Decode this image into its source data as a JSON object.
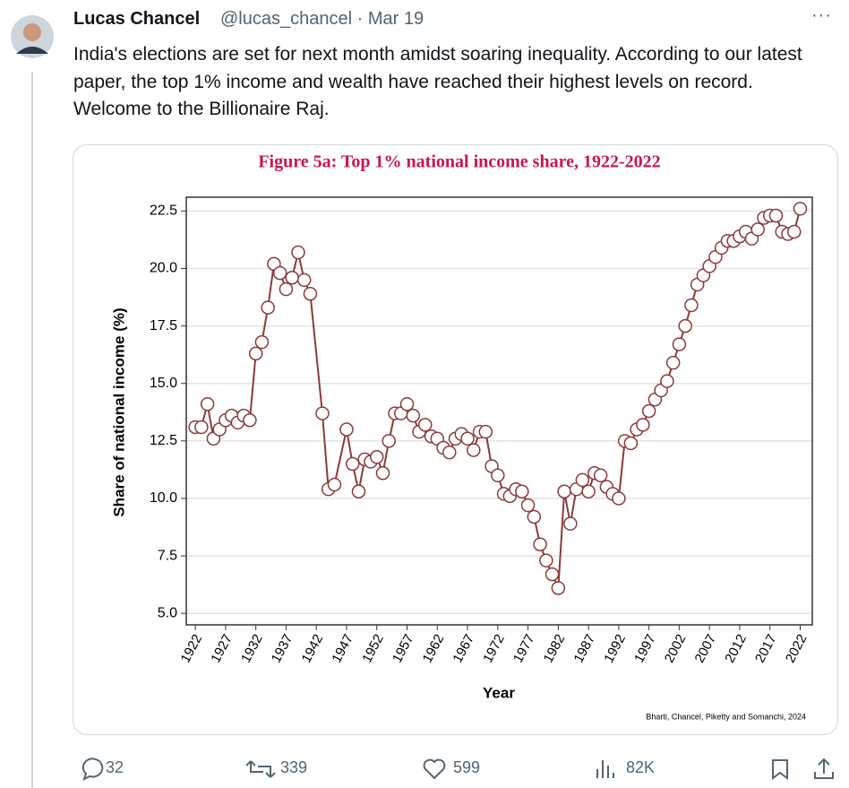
{
  "tweet": {
    "name": "Lucas Chancel",
    "handle": "@lucas_chancel",
    "separator": "·",
    "date": "Mar 19",
    "more": "···",
    "text": "India's elections are set for next month amidst soaring inequality. According to our latest paper, the top 1% income and wealth have reached their highest levels on record. Welcome to the Billionaire Raj.",
    "stats": {
      "replies": 32,
      "retweets": 339,
      "likes": 599,
      "views": "82K"
    }
  },
  "chart_data": {
    "type": "line",
    "title": "Figure 5a: Top 1% national income share, 1922-2022",
    "x_label": "Year",
    "y_label": "Share of national income (%)",
    "source": "Bharti, Chancel, Piketty and Somanchi, 2024",
    "color": "#8b3a3a",
    "marker_fill": "#ffffff",
    "grid": true,
    "x": [
      1922,
      1923,
      1924,
      1925,
      1926,
      1927,
      1928,
      1929,
      1930,
      1931,
      1932,
      1933,
      1934,
      1935,
      1936,
      1937,
      1938,
      1939,
      1940,
      1941,
      1943,
      1944,
      1945,
      1947,
      1948,
      1949,
      1950,
      1951,
      1952,
      1953,
      1954,
      1955,
      1956,
      1957,
      1958,
      1959,
      1960,
      1961,
      1962,
      1963,
      1964,
      1965,
      1966,
      1967,
      1968,
      1969,
      1970,
      1971,
      1972,
      1973,
      1974,
      1975,
      1976,
      1977,
      1978,
      1979,
      1980,
      1981,
      1982,
      1983,
      1984,
      1985,
      1986,
      1987,
      1988,
      1989,
      1990,
      1991,
      1992,
      1993,
      1994,
      1995,
      1996,
      1997,
      1998,
      1999,
      2000,
      2001,
      2002,
      2003,
      2004,
      2005,
      2006,
      2007,
      2008,
      2009,
      2010,
      2011,
      2012,
      2013,
      2014,
      2015,
      2016,
      2017,
      2018,
      2019,
      2020,
      2021,
      2022
    ],
    "values": [
      13.1,
      13.1,
      14.1,
      12.6,
      13.0,
      13.4,
      13.6,
      13.3,
      13.6,
      13.4,
      16.3,
      16.8,
      18.3,
      20.2,
      19.8,
      19.1,
      19.6,
      20.7,
      19.5,
      18.9,
      13.7,
      10.4,
      10.6,
      13.0,
      11.5,
      10.3,
      11.7,
      11.6,
      11.8,
      11.1,
      12.5,
      13.7,
      13.7,
      14.1,
      13.6,
      12.9,
      13.2,
      12.7,
      12.6,
      12.2,
      12.0,
      12.6,
      12.8,
      12.6,
      12.1,
      12.9,
      12.9,
      11.4,
      11.0,
      10.2,
      10.1,
      10.4,
      10.3,
      9.7,
      9.2,
      8.0,
      7.3,
      6.7,
      6.1,
      10.3,
      8.9,
      10.4,
      10.8,
      10.3,
      11.1,
      11.0,
      10.5,
      10.2,
      10.0,
      12.5,
      12.4,
      13.0,
      13.2,
      13.8,
      14.3,
      14.7,
      15.1,
      15.9,
      16.7,
      17.5,
      18.4,
      19.3,
      19.7,
      20.1,
      20.5,
      20.9,
      21.2,
      21.2,
      21.4,
      21.6,
      21.3,
      21.7,
      22.2,
      22.3,
      22.3,
      21.6,
      21.5,
      21.6,
      22.6
    ],
    "xlim": [
      1920.5,
      2024
    ],
    "ylim": [
      4.5,
      23.1
    ],
    "xticks": [
      1922,
      1927,
      1932,
      1937,
      1942,
      1947,
      1952,
      1957,
      1962,
      1967,
      1972,
      1977,
      1982,
      1987,
      1992,
      1997,
      2002,
      2007,
      2012,
      2017,
      2022
    ],
    "yticks": [
      {
        "value": 5,
        "label": "5.0"
      },
      7.5,
      {
        "value": 10,
        "label": "10.0"
      },
      12.5,
      {
        "value": 15,
        "label": "15.0"
      },
      17.5,
      {
        "value": 20,
        "label": "20.0"
      },
      22.5
    ]
  }
}
